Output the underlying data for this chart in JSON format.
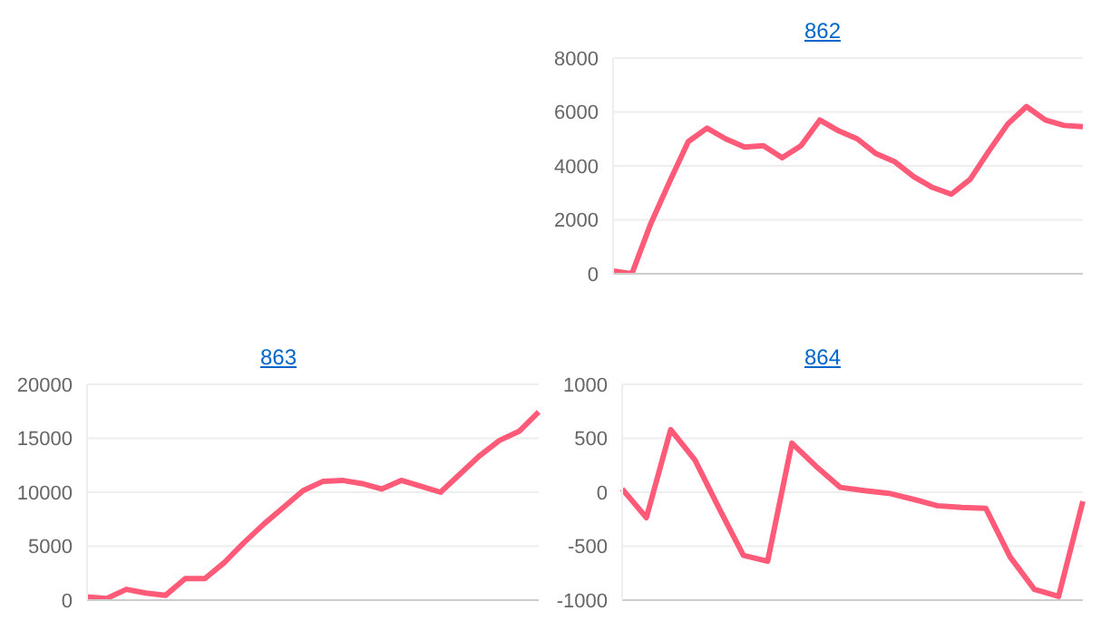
{
  "chart_data": [
    {
      "type": "line",
      "title": "862",
      "categories": [
        null,
        null,
        null,
        null,
        null,
        null,
        null,
        null,
        null,
        null,
        null,
        null,
        null,
        null,
        null,
        null,
        null,
        null,
        null,
        null,
        null,
        null,
        null,
        null,
        null,
        null
      ],
      "values": [
        100,
        0,
        1850,
        3400,
        4900,
        5400,
        5000,
        4700,
        4750,
        4300,
        4750,
        5700,
        5300,
        5000,
        4450,
        4150,
        3600,
        3200,
        2950,
        3500,
        4550,
        5550,
        6200,
        5700,
        5500,
        5450
      ],
      "color": "#ff5a78",
      "ylim": [
        0,
        8000
      ],
      "yticks": [
        0,
        2000,
        4000,
        6000,
        8000
      ],
      "grid": "y",
      "tick_labels": "y",
      "marker": "none"
    },
    {
      "type": "line",
      "title": "863",
      "categories": [
        null,
        null,
        null,
        null,
        null,
        null,
        null,
        null,
        null,
        null,
        null,
        null,
        null,
        null,
        null,
        null,
        null,
        null,
        null,
        null,
        null,
        null,
        null,
        null
      ],
      "values": [
        300,
        150,
        1000,
        650,
        450,
        2000,
        2000,
        3500,
        5350,
        7050,
        8600,
        10150,
        11000,
        11100,
        10800,
        10300,
        11100,
        10550,
        10000,
        11700,
        13400,
        14800,
        15650,
        17450
      ],
      "color": "#ff5a78",
      "ylim": [
        0,
        20000
      ],
      "yticks": [
        0,
        5000,
        10000,
        15000,
        20000
      ],
      "grid": "y",
      "tick_labels": "y",
      "marker": "none"
    },
    {
      "type": "line",
      "title": "864",
      "categories": [
        null,
        null,
        null,
        null,
        null,
        null,
        null,
        null,
        null,
        null,
        null,
        null,
        null,
        null,
        null,
        null,
        null,
        null,
        null,
        null
      ],
      "values": [
        30,
        -235,
        580,
        300,
        -150,
        -585,
        -640,
        455,
        240,
        45,
        15,
        -10,
        -65,
        -125,
        -140,
        -150,
        -600,
        -900,
        -965,
        -85
      ],
      "color": "#ff5a78",
      "ylim": [
        -1000,
        1000
      ],
      "yticks": [
        -1000,
        -500,
        0,
        500,
        1000
      ],
      "grid": "y",
      "tick_labels": "y",
      "marker": "none"
    }
  ]
}
